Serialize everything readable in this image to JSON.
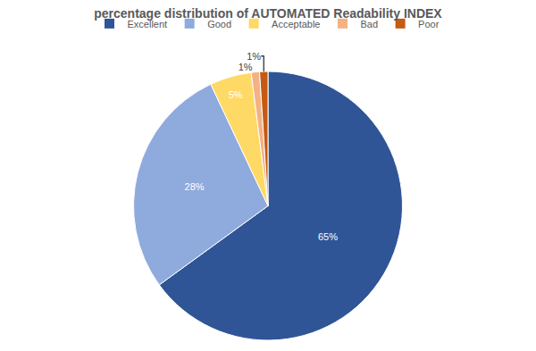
{
  "chart_data": {
    "type": "pie",
    "title": "percentage distribution of AUTOMATED Readability INDEX",
    "categories": [
      "Excellent",
      "Good",
      "Acceptable",
      "Bad",
      "Poor"
    ],
    "values": [
      65,
      28,
      5,
      1,
      1
    ],
    "value_labels": [
      "65%",
      "28%",
      "5%",
      "1%",
      "1%"
    ],
    "colors": [
      "#2f5597",
      "#8faadc",
      "#ffd966",
      "#f4b183",
      "#c55a11"
    ],
    "data_labels": true,
    "legend": "top"
  }
}
